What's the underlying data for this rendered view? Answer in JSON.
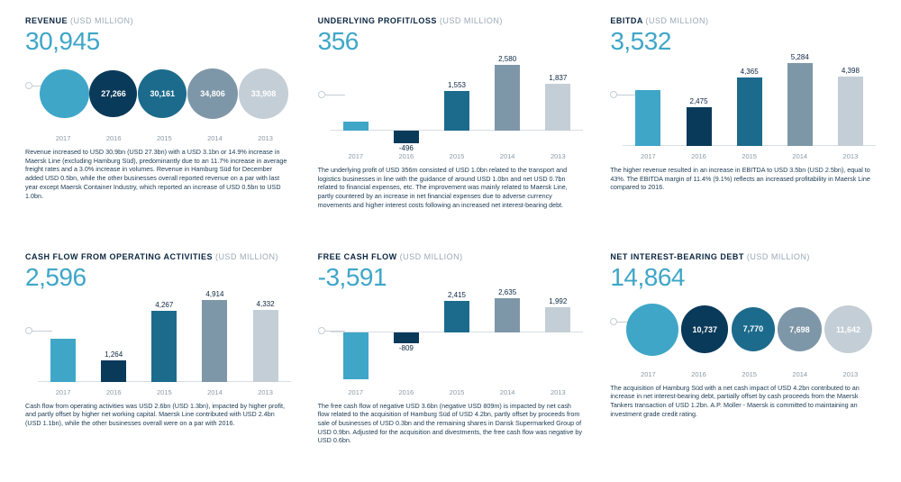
{
  "colors": {
    "accent": "#3fa6c8",
    "series": [
      "#3fa6c8",
      "#0a3a5a",
      "#1c6b8c",
      "#7e97a8",
      "#c4ced6"
    ],
    "text_on_bubble": [
      "",
      "#ffffff",
      "#ffffff",
      "#ffffff",
      "#ffffff"
    ]
  },
  "years": [
    "2017",
    "2016",
    "2015",
    "2014",
    "2013"
  ],
  "panels": [
    {
      "key": "revenue",
      "title": "REVENUE",
      "unit": "(USD million)",
      "headline": "30,945",
      "type": "bubble",
      "values": [
        30945,
        27266,
        30161,
        34806,
        33908
      ],
      "labels": [
        "",
        "27,266",
        "30,161",
        "34,806",
        "33,908"
      ],
      "max": 34806,
      "diam_min": 42,
      "diam_max": 56,
      "desc": "Revenue increased to USD 30.9bn (USD 27.3bn) with a USD 3.1bn or 14.9% increase in Maersk Line (excluding Hamburg Süd), predominantly due to an 11.7% increase in average freight rates and a 3.0% increase in volumes. Revenue in Hamburg Süd for December added USD 0.5bn, while the other businesses overall reported revenue on a par with last year except Maersk Container Industry, which reported an increase of USD 0.5bn to USD 1.0bn."
    },
    {
      "key": "upl",
      "title": "UNDERLYING PROFIT/LOSS",
      "unit": "(USD million)",
      "headline": "356",
      "type": "bar",
      "values": [
        356,
        -496,
        1553,
        2580,
        1837
      ],
      "labels": [
        "",
        "-496",
        "1,553",
        "2,580",
        "1,837"
      ],
      "ylim": [
        -600,
        2800
      ],
      "desc": "The underlying profit of USD 356m consisted of USD 1.0bn related to the transport and logistics businesses in line with the guidance of around USD 1.0bn and net USD 0.7bn related to financial expenses, etc. The improvement was mainly related to Maersk Line, partly countered by an increase in net financial expenses due to adverse currency movements and higher interest costs following an increased net interest-bearing debt."
    },
    {
      "key": "ebitda",
      "title": "EBITDA",
      "unit": "(USD million)",
      "headline": "3,532",
      "type": "bar",
      "values": [
        3532,
        2475,
        4365,
        5284,
        4398
      ],
      "labels": [
        "",
        "2,475",
        "4,365",
        "5,284",
        "4,398"
      ],
      "ylim": [
        0,
        5500
      ],
      "desc": "The higher revenue resulted in an increase in EBITDA to USD 3.5bn (USD 2.5bn), equal to 43%. The EBITDA margin of 11.4% (9.1%) reflects an increased profitability in Maersk Line compared to 2016."
    },
    {
      "key": "cfops",
      "title": "CASH FLOW FROM OPERATING ACTIVITIES",
      "unit": "(USD million)",
      "headline": "2,596",
      "type": "bar",
      "values": [
        2596,
        1264,
        4267,
        4914,
        4332
      ],
      "labels": [
        "",
        "1,264",
        "4,267",
        "4,914",
        "4,332"
      ],
      "ylim": [
        0,
        5200
      ],
      "desc": "Cash flow from operating activities was USD 2.6bn (USD 1.3bn), impacted by higher profit, and partly offset by higher net working capital. Maersk Line contributed with USD 2.4bn (USD 1.1bn), while the other businesses overall were on a par with 2016."
    },
    {
      "key": "fcf",
      "title": "FREE CASH FLOW",
      "unit": "(USD million)",
      "headline": "-3,591",
      "type": "bar",
      "values": [
        -3591,
        -809,
        2415,
        2635,
        1992
      ],
      "labels": [
        "",
        "-809",
        "2,415",
        "2,635",
        "1,992"
      ],
      "ylim": [
        -3800,
        2900
      ],
      "desc": "The free cash flow of negative USD 3.6bn (negative USD 809m) is impacted by net cash flow related to the acquisition of Hamburg Süd of USD 4.2bn, partly offset by proceeds from sale of businesses of USD 0.3bn and the remaining shares in Dansk Supermarked Group of USD 0.9bn. Adjusted for the acquisition and divestments, the free cash flow was negative by USD 0.6bn."
    },
    {
      "key": "nibd",
      "title": "NET INTEREST-BEARING DEBT",
      "unit": "(USD million)",
      "headline": "14,864",
      "type": "bubble",
      "values": [
        14864,
        10737,
        7770,
        7698,
        11642
      ],
      "labels": [
        "",
        "10,737",
        "7,770",
        "7,698",
        "11,642"
      ],
      "max": 14864,
      "diam_min": 38,
      "diam_max": 58,
      "desc": "The acquisition of Hamburg Süd with a net cash impact of USD 4.2bn contributed to an increase in net interest-bearing debt, partially offset by cash proceeds from the Maersk Tankers transaction of USD 1.2bn. A.P. Moller - Maersk is committed to maintaining an investment grade credit rating."
    }
  ]
}
